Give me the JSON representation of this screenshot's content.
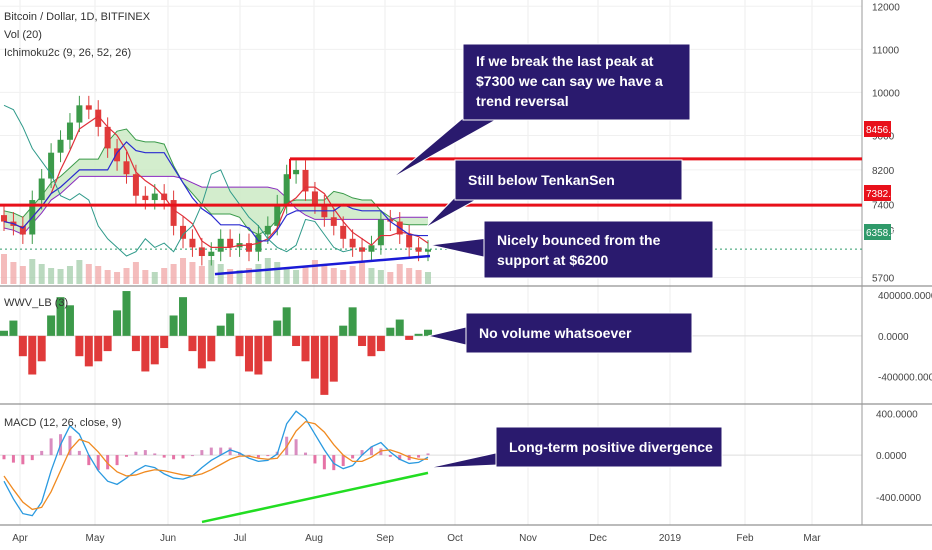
{
  "header": {
    "title": "Bitcoin / Dollar, 1D, BITFINEX",
    "vol": "Vol (20)",
    "ichimoku": "Ichimoku2c (9, 26, 52, 26)",
    "wwv": "WWV_LB (3)",
    "macd": "MACD (12, 26, close, 9)"
  },
  "annotations": [
    {
      "line1": "If we break the last peak at",
      "line2": "$7300 we can say we have a",
      "line3": "trend reversal"
    },
    {
      "line1": "Still below TenkanSen"
    },
    {
      "line1": "Nicely bounced from the",
      "line2": "support at $6200"
    },
    {
      "line1": "No volume whatsoever"
    },
    {
      "line1": "Long-term positive divergence"
    }
  ],
  "price_badges": {
    "resistance_high": "8456.9",
    "resistance_mid": "7382.1",
    "current": "6358.6"
  },
  "colors": {
    "resistance": "#e8101a",
    "support": "#1a1ad6",
    "macd_support": "#22dd22",
    "note_bg": "#2a1a6e",
    "up": "#3c9a4a",
    "down": "#e03a3a",
    "kumo_fill": "#c8e8c0",
    "badge_green": "#2f9a6a"
  },
  "chart_data": [
    {
      "type": "line",
      "title": "Bitcoin / Dollar, 1D, BITFINEX",
      "x_ticks": [
        "Apr",
        "May",
        "Jun",
        "Jul",
        "Aug",
        "Sep",
        "Oct",
        "Nov",
        "Dec",
        "2019",
        "Feb",
        "Mar"
      ],
      "y_ticks": [
        5700,
        6800,
        7400,
        8200,
        9000,
        10000,
        11000,
        12000
      ],
      "ylim": [
        5550,
        12100
      ],
      "series": [
        {
          "values": [
            7000,
            6900,
            6700,
            7500,
            8000,
            8600,
            8900,
            9300,
            9700,
            9600,
            9200,
            8700,
            8400,
            8100,
            7600,
            7500,
            7650,
            7500,
            6900,
            6600,
            6400,
            6200,
            6300,
            6600,
            6400,
            6500,
            6300,
            6700,
            6900,
            7400,
            8100,
            8200,
            7700,
            7400,
            7100,
            6900,
            6600,
            6400,
            6300,
            6450,
            7050,
            7000,
            6700,
            6400,
            6300,
            6350
          ]
        }
      ],
      "horizontal_levels": [
        8456.9,
        7382.1
      ],
      "support_line": {
        "from": [
          "Jun",
          5780
        ],
        "to": [
          "Sep",
          6200
        ]
      },
      "last_price": 6358.6
    },
    {
      "type": "bar",
      "title": "WWV_LB (3)",
      "y_ticks": [
        400000,
        0,
        -400000
      ],
      "y_tick_labels": [
        "400000.0000",
        "0.0000",
        "-400000.0000"
      ],
      "ylim": [
        -650000,
        470000
      ],
      "series": [
        {
          "values": [
            50000,
            150000,
            -200000,
            -380000,
            -250000,
            200000,
            380000,
            300000,
            -200000,
            -300000,
            -250000,
            -150000,
            250000,
            440000,
            -150000,
            -350000,
            -280000,
            -120000,
            200000,
            380000,
            -150000,
            -320000,
            -250000,
            100000,
            220000,
            -200000,
            -350000,
            -380000,
            -250000,
            150000,
            280000,
            -100000,
            -250000,
            -420000,
            -580000,
            -450000,
            100000,
            280000,
            -100000,
            -200000,
            -150000,
            80000,
            160000,
            -40000,
            20000,
            60000
          ]
        }
      ]
    },
    {
      "type": "line",
      "title": "MACD (12, 26, close, 9)",
      "y_ticks": [
        400,
        0,
        -400
      ],
      "y_tick_labels": [
        "400.0000",
        "0.0000",
        "-400.0000"
      ],
      "ylim": [
        -650,
        470
      ],
      "series": [
        {
          "values": [
            -250,
            -420,
            -560,
            -580,
            -450,
            -150,
            100,
            280,
            200,
            0,
            -150,
            -250,
            -280,
            -220,
            -150,
            -100,
            -120,
            -180,
            -220,
            -230,
            -200,
            -120,
            -50,
            0,
            50,
            20,
            -30,
            -60,
            -50,
            10,
            300,
            420,
            350,
            200,
            50,
            -80,
            -130,
            -100,
            0,
            80,
            120,
            30,
            -40,
            -80,
            -70,
            -20
          ]
        },
        {
          "values": [
            -200,
            -330,
            -450,
            -520,
            -500,
            -350,
            -150,
            50,
            150,
            120,
            30,
            -80,
            -160,
            -200,
            -190,
            -160,
            -140,
            -150,
            -170,
            -190,
            -200,
            -180,
            -140,
            -90,
            -40,
            -10,
            -10,
            -30,
            -40,
            -30,
            80,
            230,
            320,
            300,
            220,
            100,
            0,
            -60,
            -60,
            -20,
            40,
            50,
            20,
            -20,
            -40,
            -40
          ]
        }
      ],
      "support_line": {
        "from": [
          "Jun",
          -640
        ],
        "to": [
          "Sep",
          -170
        ]
      }
    }
  ]
}
